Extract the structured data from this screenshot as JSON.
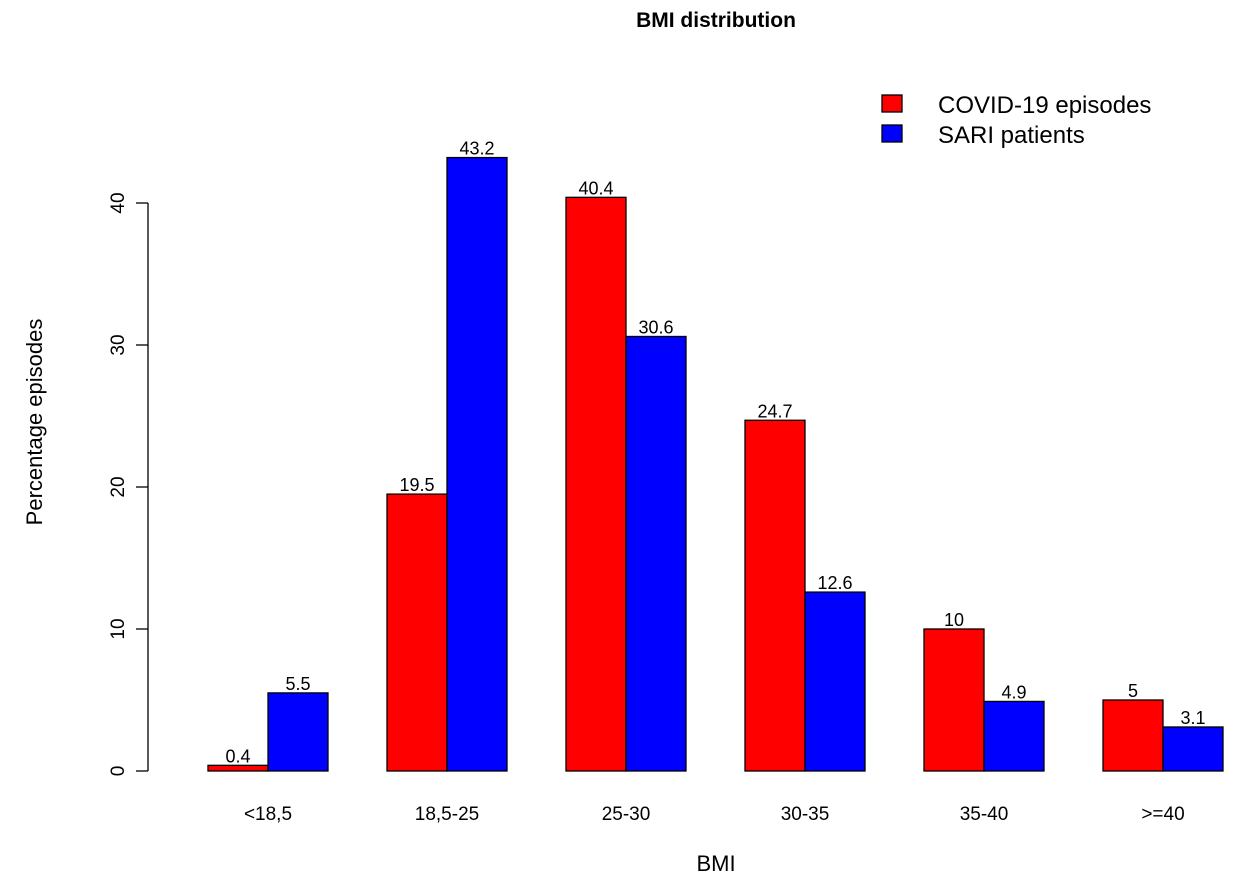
{
  "chart_data": {
    "type": "bar",
    "title": "BMI distribution",
    "xlabel": "BMI",
    "ylabel": "Percentage episodes",
    "categories": [
      "<18,5",
      "18,5-25",
      "25-30",
      "30-35",
      "35-40",
      ">=40"
    ],
    "series": [
      {
        "name": "COVID-19 episodes",
        "color": "#ff0000",
        "values": [
          0.4,
          19.5,
          40.4,
          24.7,
          10,
          5
        ],
        "labels": [
          "0.4",
          "19.5",
          "40.4",
          "24.7",
          "10",
          "5"
        ]
      },
      {
        "name": "SARI patients",
        "color": "#0000ff",
        "values": [
          5.5,
          43.2,
          30.6,
          12.6,
          4.9,
          3.1
        ],
        "labels": [
          "5.5",
          "43.2",
          "30.6",
          "12.6",
          "4.9",
          "3.1"
        ]
      }
    ],
    "yticks": [
      0,
      10,
      20,
      30,
      40
    ],
    "ylim": [
      0,
      43.2
    ],
    "grid": false,
    "legend": "top-right"
  }
}
